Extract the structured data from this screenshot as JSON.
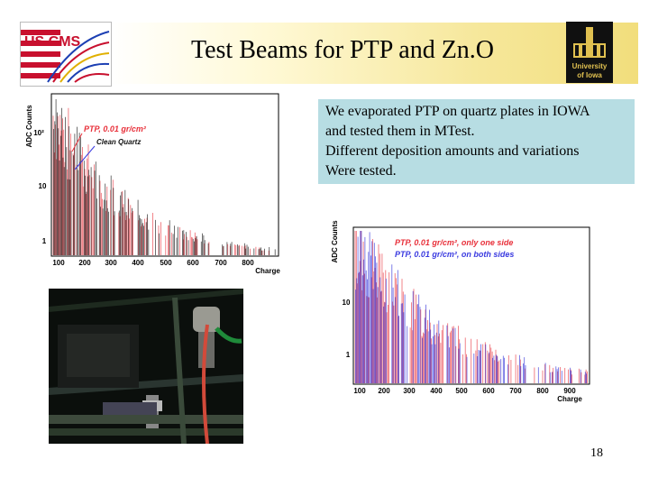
{
  "slide": {
    "title": "Test Beams for PTP and Zn.O",
    "text_lines": [
      "We evaporated PTP on quartz plates in IOWA",
      "and tested them in MTest.",
      "Different deposition amounts and variations",
      "Were tested."
    ],
    "page_number": "18"
  },
  "logos": {
    "cms_text": "US CMS",
    "iowa_line1": "University",
    "iowa_line2": "of Iowa"
  },
  "colors": {
    "header_gradient_end": "#f2de7c",
    "textbox_bg": "#b7dde3",
    "red_series": "#e8303a",
    "blue_series": "#2a2ad8",
    "black_series": "#111111",
    "legend_red": "#e8303a",
    "legend_blue": "#3a3ae0"
  },
  "chart_data": [
    {
      "type": "histogram",
      "ylabel": "ADC Counts",
      "xlabel": "Charge",
      "x_ticks": [
        "100",
        "200",
        "300",
        "400",
        "500",
        "600",
        "700",
        "800"
      ],
      "y_ticks": [
        "1",
        "10",
        "10²"
      ],
      "yscale": "log",
      "series": [
        {
          "name": "PTP, 0.01 gr/cm²",
          "color": "#e8303a"
        },
        {
          "name": "Clean Quartz",
          "color": "#111111"
        }
      ]
    },
    {
      "type": "histogram",
      "ylabel": "ADC Counts",
      "xlabel": "Charge",
      "x_ticks": [
        "100",
        "200",
        "300",
        "400",
        "500",
        "600",
        "700",
        "800",
        "900"
      ],
      "y_ticks": [
        "1",
        "10"
      ],
      "yscale": "log",
      "series": [
        {
          "name": "PTP, 0.01 gr/cm², only one side",
          "color": "#e8303a"
        },
        {
          "name": "PTP, 0.01 gr/cm², on both sides",
          "color": "#2a2ad8"
        }
      ]
    }
  ]
}
